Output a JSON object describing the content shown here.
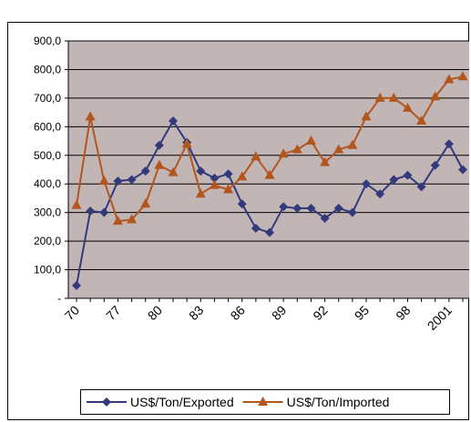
{
  "chart_data": {
    "type": "line",
    "categories": [
      "70",
      null,
      null,
      "77",
      null,
      null,
      "80",
      null,
      null,
      "83",
      null,
      null,
      "86",
      null,
      null,
      "89",
      null,
      null,
      "92",
      null,
      null,
      "95",
      null,
      null,
      "98",
      null,
      null,
      "2001",
      null
    ],
    "series": [
      {
        "name": "US$/Ton/Exported",
        "color": "#323a7c",
        "marker": "diamond",
        "values": [
          45,
          305,
          300,
          410,
          415,
          445,
          535,
          620,
          545,
          445,
          420,
          435,
          330,
          245,
          230,
          320,
          315,
          315,
          280,
          315,
          300,
          400,
          365,
          415,
          430,
          390,
          465,
          540,
          450
        ]
      },
      {
        "name": "US$/Ton/Imported",
        "color": "#b3561e",
        "marker": "triangle",
        "values": [
          325,
          635,
          410,
          270,
          275,
          330,
          465,
          440,
          540,
          365,
          395,
          380,
          425,
          495,
          430,
          505,
          520,
          550,
          475,
          520,
          535,
          635,
          700,
          700,
          665,
          620,
          705,
          765,
          775
        ]
      }
    ],
    "ylim": [
      0,
      900
    ],
    "yticks": [
      {
        "value": 0,
        "label": "-"
      },
      {
        "value": 100,
        "label": "100,0"
      },
      {
        "value": 200,
        "label": "200,0"
      },
      {
        "value": 300,
        "label": "300,0"
      },
      {
        "value": 400,
        "label": "400,0"
      },
      {
        "value": 500,
        "label": "500,0"
      },
      {
        "value": 600,
        "label": "600,0"
      },
      {
        "value": 700,
        "label": "700,0"
      },
      {
        "value": 800,
        "label": "800,0"
      },
      {
        "value": {
          "value": 900,
          "label": "900,0"
        }
      }
    ],
    "grid": true,
    "plot_background": "#c2b5b5",
    "legend": "bottom"
  }
}
